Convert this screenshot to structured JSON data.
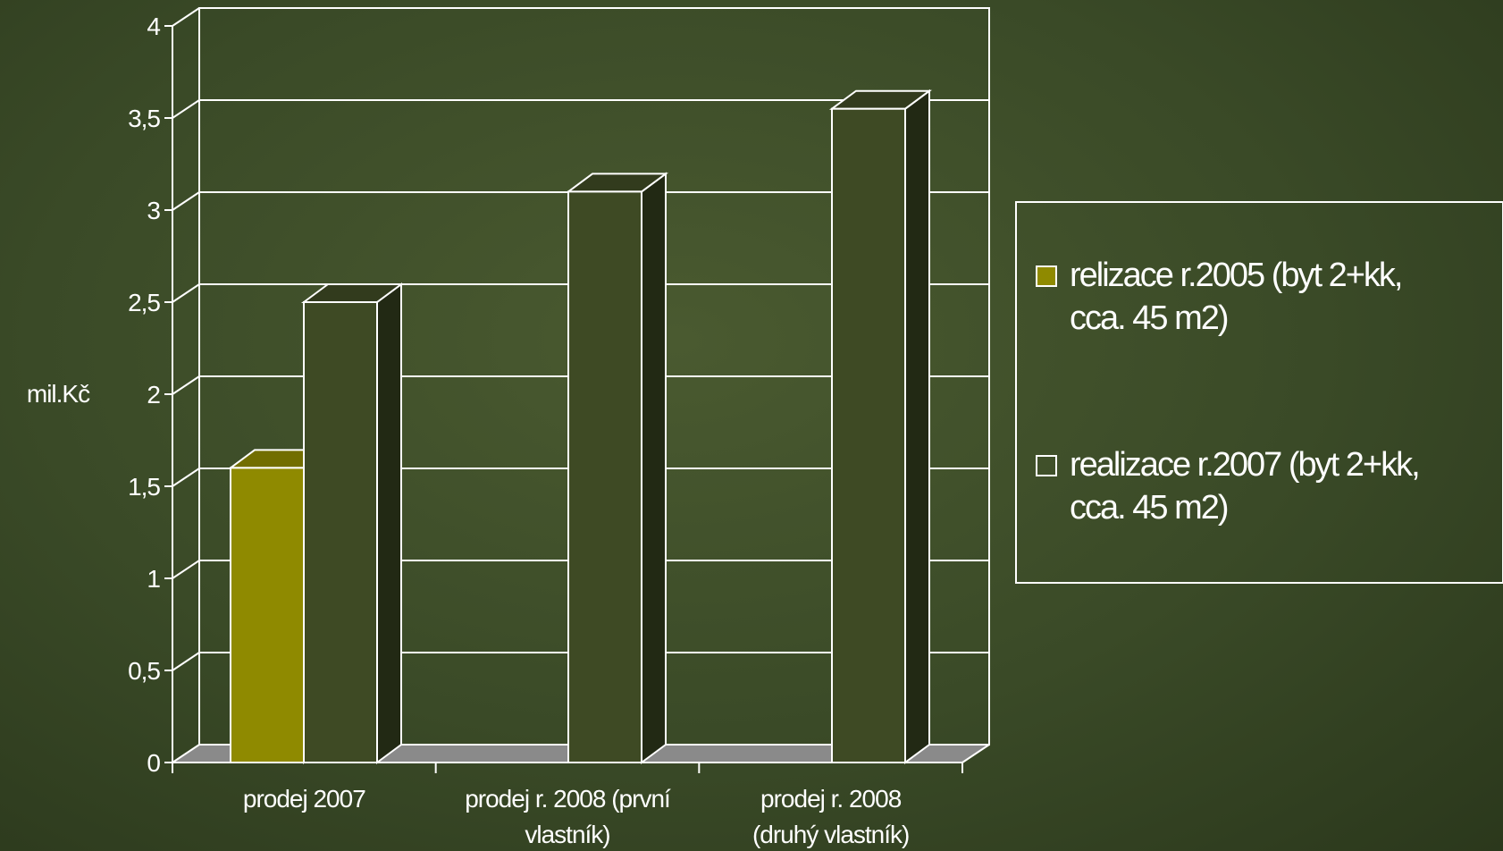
{
  "chart_data": {
    "type": "bar",
    "categories": [
      "prodej 2007",
      "prodej r. 2008 (první vlastník)",
      "prodej r. 2008 (druhý vlastník)"
    ],
    "category_lines": [
      [
        "prodej 2007"
      ],
      [
        "prodej r. 2008 (první",
        "vlastník)"
      ],
      [
        "prodej r. 2008",
        "(druhý vlastník)"
      ]
    ],
    "series": [
      {
        "name": "relizace r.2005 (byt 2+kk, cca. 45 m2)",
        "name_lines": [
          "relizace r.2005 (byt 2+kk,",
          "cca. 45 m2)"
        ],
        "color": "#8f8a00",
        "values": [
          1.6,
          null,
          null
        ]
      },
      {
        "name": "realizace r.2007 (byt 2+kk, cca. 45 m2)",
        "name_lines": [
          "realizace r.2007 (byt 2+kk,",
          "cca. 45 m2)"
        ],
        "color": "#3e4a24",
        "values": [
          2.5,
          3.1,
          3.55
        ]
      }
    ],
    "ylabel": "mil.Kč",
    "ylim": [
      0,
      4
    ],
    "yticks": [
      "0",
      "0,5",
      "1",
      "1,5",
      "2",
      "2,5",
      "3",
      "3,5",
      "4"
    ],
    "grid": true,
    "legend_position": "right",
    "view": "3d"
  }
}
